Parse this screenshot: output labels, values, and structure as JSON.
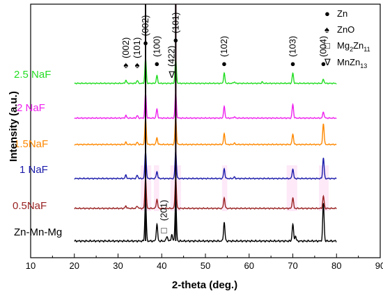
{
  "chart_data": {
    "type": "line",
    "xlabel": "2-theta (deg.)",
    "ylabel": "Intensity (a.u.)",
    "xlim": [
      10,
      90
    ],
    "xticks": [
      "10",
      "20",
      "30",
      "40",
      "50",
      "60",
      "70",
      "80",
      "90"
    ],
    "grid": false,
    "legend_position": "top-right",
    "legend": [
      {
        "marker": "●",
        "label": "Zn"
      },
      {
        "marker": "♠",
        "label": "ZnO"
      },
      {
        "marker": "□",
        "label": "Mg2Zn11",
        "label_main": "Mg",
        "label_sub1": "2",
        "label_mid": "Zn",
        "label_sub2": "11"
      },
      {
        "marker": "∇",
        "label": "MnZn13",
        "label_main": "MnZn",
        "label_sub1": "13"
      }
    ],
    "peak_labels": [
      {
        "text": "(002)",
        "x": 31.8,
        "marker": "♠"
      },
      {
        "text": "(101)",
        "x": 34.4,
        "marker": "♠"
      },
      {
        "text": "(002)",
        "x": 36.3,
        "marker": "●"
      },
      {
        "text": "(100)",
        "x": 38.9,
        "marker": "●"
      },
      {
        "text": "(422)",
        "x": 42.3,
        "marker": "∇"
      },
      {
        "text": "(101)",
        "x": 43.2,
        "marker": "●"
      },
      {
        "text": "(102)",
        "x": 54.3,
        "marker": "●"
      },
      {
        "text": "(103)",
        "x": 70.0,
        "marker": "●"
      },
      {
        "text": "(004)",
        "x": 77.0,
        "marker": "●"
      },
      {
        "text": "(201)",
        "x": 40.5,
        "marker": "□"
      }
    ],
    "series": [
      {
        "name": "2.5 NaF",
        "color": "#22dd22"
      },
      {
        "name": "2 NaF",
        "color": "#ee22ee"
      },
      {
        "name": "1.5NaF",
        "color": "#ff8800"
      },
      {
        "name": "1 NaF",
        "color": "#1a1aaa"
      },
      {
        "name": "0.5NaF",
        "color": "#992222"
      },
      {
        "name": "Zn-Mn-Mg",
        "color": "#000000"
      }
    ],
    "peaks": [
      {
        "series": "2.5 NaF",
        "pos": [
          31.8,
          34.4,
          36.3,
          38.9,
          43.2,
          54.3,
          56.6,
          63.0,
          70.0,
          77.0
        ],
        "rel": [
          0.12,
          0.12,
          1.0,
          0.3,
          1.0,
          0.4,
          0.06,
          0.05,
          0.4,
          0.16
        ]
      },
      {
        "series": "2 NaF",
        "pos": [
          31.8,
          34.4,
          36.3,
          38.9,
          43.2,
          54.3,
          56.6,
          70.0,
          77.0
        ],
        "rel": [
          0.1,
          0.1,
          1.0,
          0.35,
          1.0,
          0.45,
          0.05,
          0.55,
          0.25
        ]
      },
      {
        "series": "1.5NaF",
        "pos": [
          31.8,
          34.4,
          36.3,
          38.9,
          43.2,
          54.3,
          56.6,
          70.0,
          77.0
        ],
        "rel": [
          0.08,
          0.08,
          1.0,
          0.25,
          1.0,
          0.4,
          0.05,
          0.4,
          0.8
        ]
      },
      {
        "series": "1 NaF",
        "pos": [
          31.8,
          34.4,
          36.3,
          38.9,
          43.2,
          54.3,
          56.6,
          70.0,
          77.0
        ],
        "rel": [
          0.12,
          0.12,
          1.0,
          0.25,
          1.0,
          0.35,
          0.05,
          0.35,
          0.75
        ]
      },
      {
        "series": "0.5NaF",
        "pos": [
          31.8,
          34.4,
          36.3,
          38.9,
          43.2,
          54.3,
          70.0,
          77.0
        ],
        "rel": [
          0.08,
          0.08,
          1.0,
          0.3,
          1.0,
          0.35,
          0.35,
          0.4
        ]
      },
      {
        "series": "Zn-Mn-Mg",
        "pos": [
          36.3,
          38.9,
          41.2,
          42.3,
          43.2,
          54.3,
          70.0,
          70.6,
          77.0
        ],
        "rel": [
          1.0,
          0.4,
          0.12,
          0.15,
          1.0,
          0.45,
          0.4,
          0.12,
          0.9
        ]
      }
    ]
  }
}
